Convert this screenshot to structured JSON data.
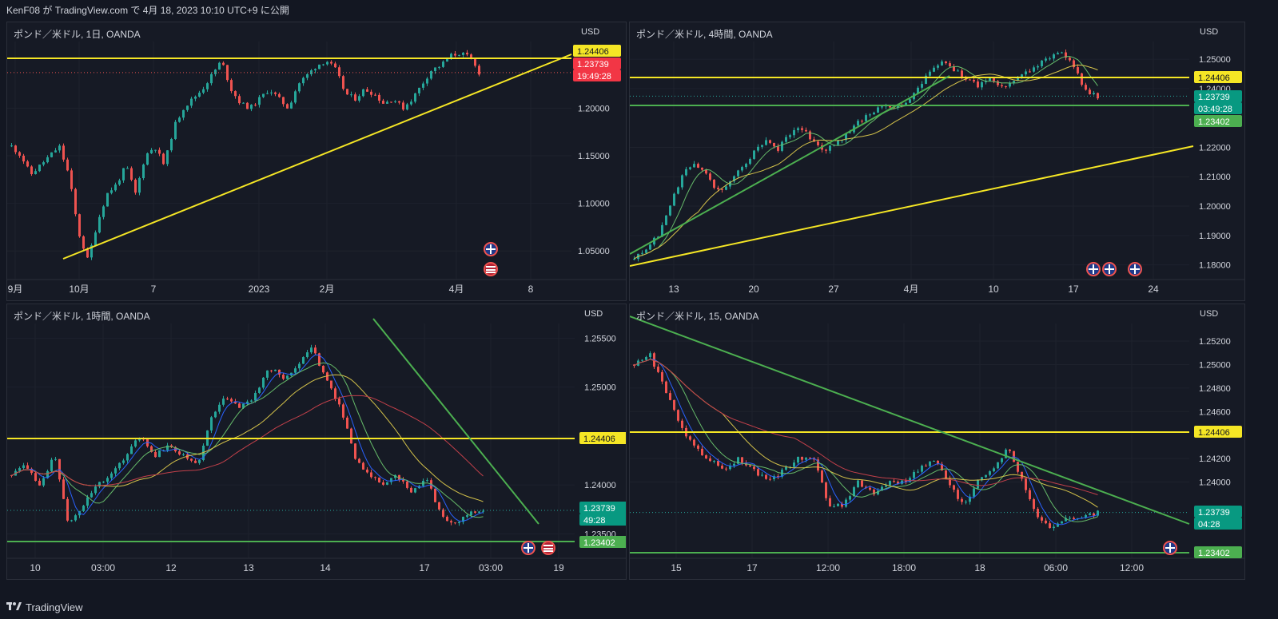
{
  "header": {
    "published": "KenF08 が TradingView.com で 4月 18, 2023 10:10 UTC+9 に公開"
  },
  "footer": {
    "brand": "TradingView",
    "logo_icon": "tradingview-logo-icon"
  },
  "colors": {
    "bg": "#131722",
    "panel": "#161a25",
    "grid": "#1e222d",
    "up": "#26a69a",
    "down": "#ef5350",
    "yellow": "#f5e625",
    "green": "#4caf50",
    "ma_blue": "#2962ff",
    "ma_green": "#66bb6a",
    "ma_yellow": "#d4c24a",
    "ma_red": "#c2404a",
    "price_label": "#089981",
    "price_label_red": "#f23645"
  },
  "chart_data": [
    {
      "type": "candlestick",
      "title": "ポンド／米ドル, 1日, OANDA",
      "currency": "USD",
      "yticks": [
        "1.05000",
        "1.10000",
        "1.15000",
        "1.20000"
      ],
      "xticks": [
        "9月",
        "10月",
        "7",
        "2023",
        "2月",
        "4月",
        "8"
      ],
      "price_labels": [
        {
          "text": "1.24406",
          "kind": "yellow"
        },
        {
          "text": "1.23739",
          "kind": "red"
        },
        {
          "text": "19:49:28",
          "kind": "red"
        }
      ],
      "close_series": [
        1.16,
        1.15,
        1.13,
        1.14,
        1.15,
        1.16,
        1.13,
        1.07,
        1.04,
        1.08,
        1.11,
        1.12,
        1.14,
        1.11,
        1.15,
        1.16,
        1.14,
        1.18,
        1.2,
        1.21,
        1.22,
        1.235,
        1.25,
        1.22,
        1.205,
        1.2,
        1.21,
        1.22,
        1.21,
        1.2,
        1.225,
        1.235,
        1.245,
        1.25,
        1.24,
        1.215,
        1.21,
        1.22,
        1.215,
        1.205,
        1.21,
        1.2,
        1.21,
        1.225,
        1.24,
        1.245,
        1.255,
        1.258,
        1.253,
        1.2374
      ]
    },
    {
      "type": "candlestick",
      "title": "ポンド／米ドル, 4時間, OANDA",
      "currency": "USD",
      "yticks": [
        "1.18000",
        "1.19000",
        "1.20000",
        "1.21000",
        "1.22000",
        "1.24000",
        "1.25000"
      ],
      "xticks": [
        "13",
        "20",
        "27",
        "4月",
        "10",
        "17",
        "24"
      ],
      "price_labels": [
        {
          "text": "1.24406",
          "kind": "yellow"
        },
        {
          "text": "1.23739",
          "kind": "teal"
        },
        {
          "text": "03:49:28",
          "kind": "teal"
        },
        {
          "text": "1.23402",
          "kind": "green"
        }
      ],
      "close_series": [
        1.182,
        1.185,
        1.19,
        1.2,
        1.21,
        1.215,
        1.212,
        1.205,
        1.208,
        1.213,
        1.218,
        1.222,
        1.219,
        1.224,
        1.227,
        1.222,
        1.219,
        1.221,
        1.225,
        1.229,
        1.232,
        1.235,
        1.233,
        1.236,
        1.24,
        1.247,
        1.25,
        1.246,
        1.243,
        1.241,
        1.244,
        1.24,
        1.243,
        1.246,
        1.248,
        1.251,
        1.253,
        1.247,
        1.239,
        1.2374
      ]
    },
    {
      "type": "candlestick",
      "title": "ポンド／米ドル, 1時間, OANDA",
      "currency": "USD",
      "yticks": [
        "1.23500",
        "1.24000",
        "1.24500",
        "1.25000",
        "1.25500"
      ],
      "xticks": [
        "10",
        "03:00",
        "12",
        "13",
        "14",
        "17",
        "03:00",
        "19"
      ],
      "price_labels": [
        {
          "text": "1.24406",
          "kind": "yellow"
        },
        {
          "text": "1.23739",
          "kind": "teal"
        },
        {
          "text": "49:28",
          "kind": "teal"
        },
        {
          "text": "1.23402",
          "kind": "green"
        }
      ],
      "close_series": [
        1.241,
        1.242,
        1.24,
        1.243,
        1.236,
        1.238,
        1.24,
        1.241,
        1.243,
        1.245,
        1.243,
        1.244,
        1.243,
        1.242,
        1.247,
        1.249,
        1.248,
        1.249,
        1.252,
        1.251,
        1.252,
        1.254,
        1.251,
        1.248,
        1.243,
        1.241,
        1.24,
        1.241,
        1.239,
        1.241,
        1.237,
        1.236,
        1.237,
        1.2374
      ]
    },
    {
      "type": "candlestick",
      "title": "ポンド／米ドル, 15, OANDA",
      "currency": "USD",
      "yticks": [
        "1.24000",
        "1.24200",
        "1.24600",
        "1.24800",
        "1.25000",
        "1.25200"
      ],
      "xticks": [
        "15",
        "17",
        "12:00",
        "18:00",
        "18",
        "06:00",
        "12:00"
      ],
      "price_labels": [
        {
          "text": "1.24406",
          "kind": "yellow"
        },
        {
          "text": "1.23739",
          "kind": "teal"
        },
        {
          "text": "04:28",
          "kind": "teal"
        },
        {
          "text": "1.23402",
          "kind": "green"
        }
      ],
      "close_series": [
        1.25,
        1.251,
        1.248,
        1.245,
        1.243,
        1.242,
        1.241,
        1.242,
        1.241,
        1.24,
        1.241,
        1.242,
        1.242,
        1.238,
        1.238,
        1.24,
        1.239,
        1.24,
        1.24,
        1.241,
        1.242,
        1.24,
        1.238,
        1.24,
        1.241,
        1.243,
        1.24,
        1.237,
        1.236,
        1.237,
        1.237,
        1.2374
      ]
    }
  ]
}
